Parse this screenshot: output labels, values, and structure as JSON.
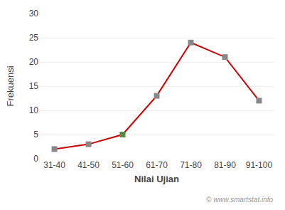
{
  "chart_data": {
    "type": "line",
    "xlabel": "Nilai Ujian",
    "ylabel": "Frekuensi",
    "categories": [
      "31-40",
      "41-50",
      "51-60",
      "61-70",
      "71-80",
      "81-90",
      "91-100"
    ],
    "values": [
      2,
      3,
      5,
      13,
      24,
      21,
      12
    ],
    "color": "#cc0000",
    "colors": [
      "#888888",
      "#888888",
      "#5a8a40",
      "#888888",
      "#888888",
      "#888888",
      "#888888"
    ],
    "marker": "square",
    "ylim": [
      0,
      30
    ],
    "yticks": [
      0,
      5,
      10,
      15,
      20,
      25,
      30
    ],
    "grid": true,
    "annotations": [
      "© www.smartstat.info"
    ]
  }
}
